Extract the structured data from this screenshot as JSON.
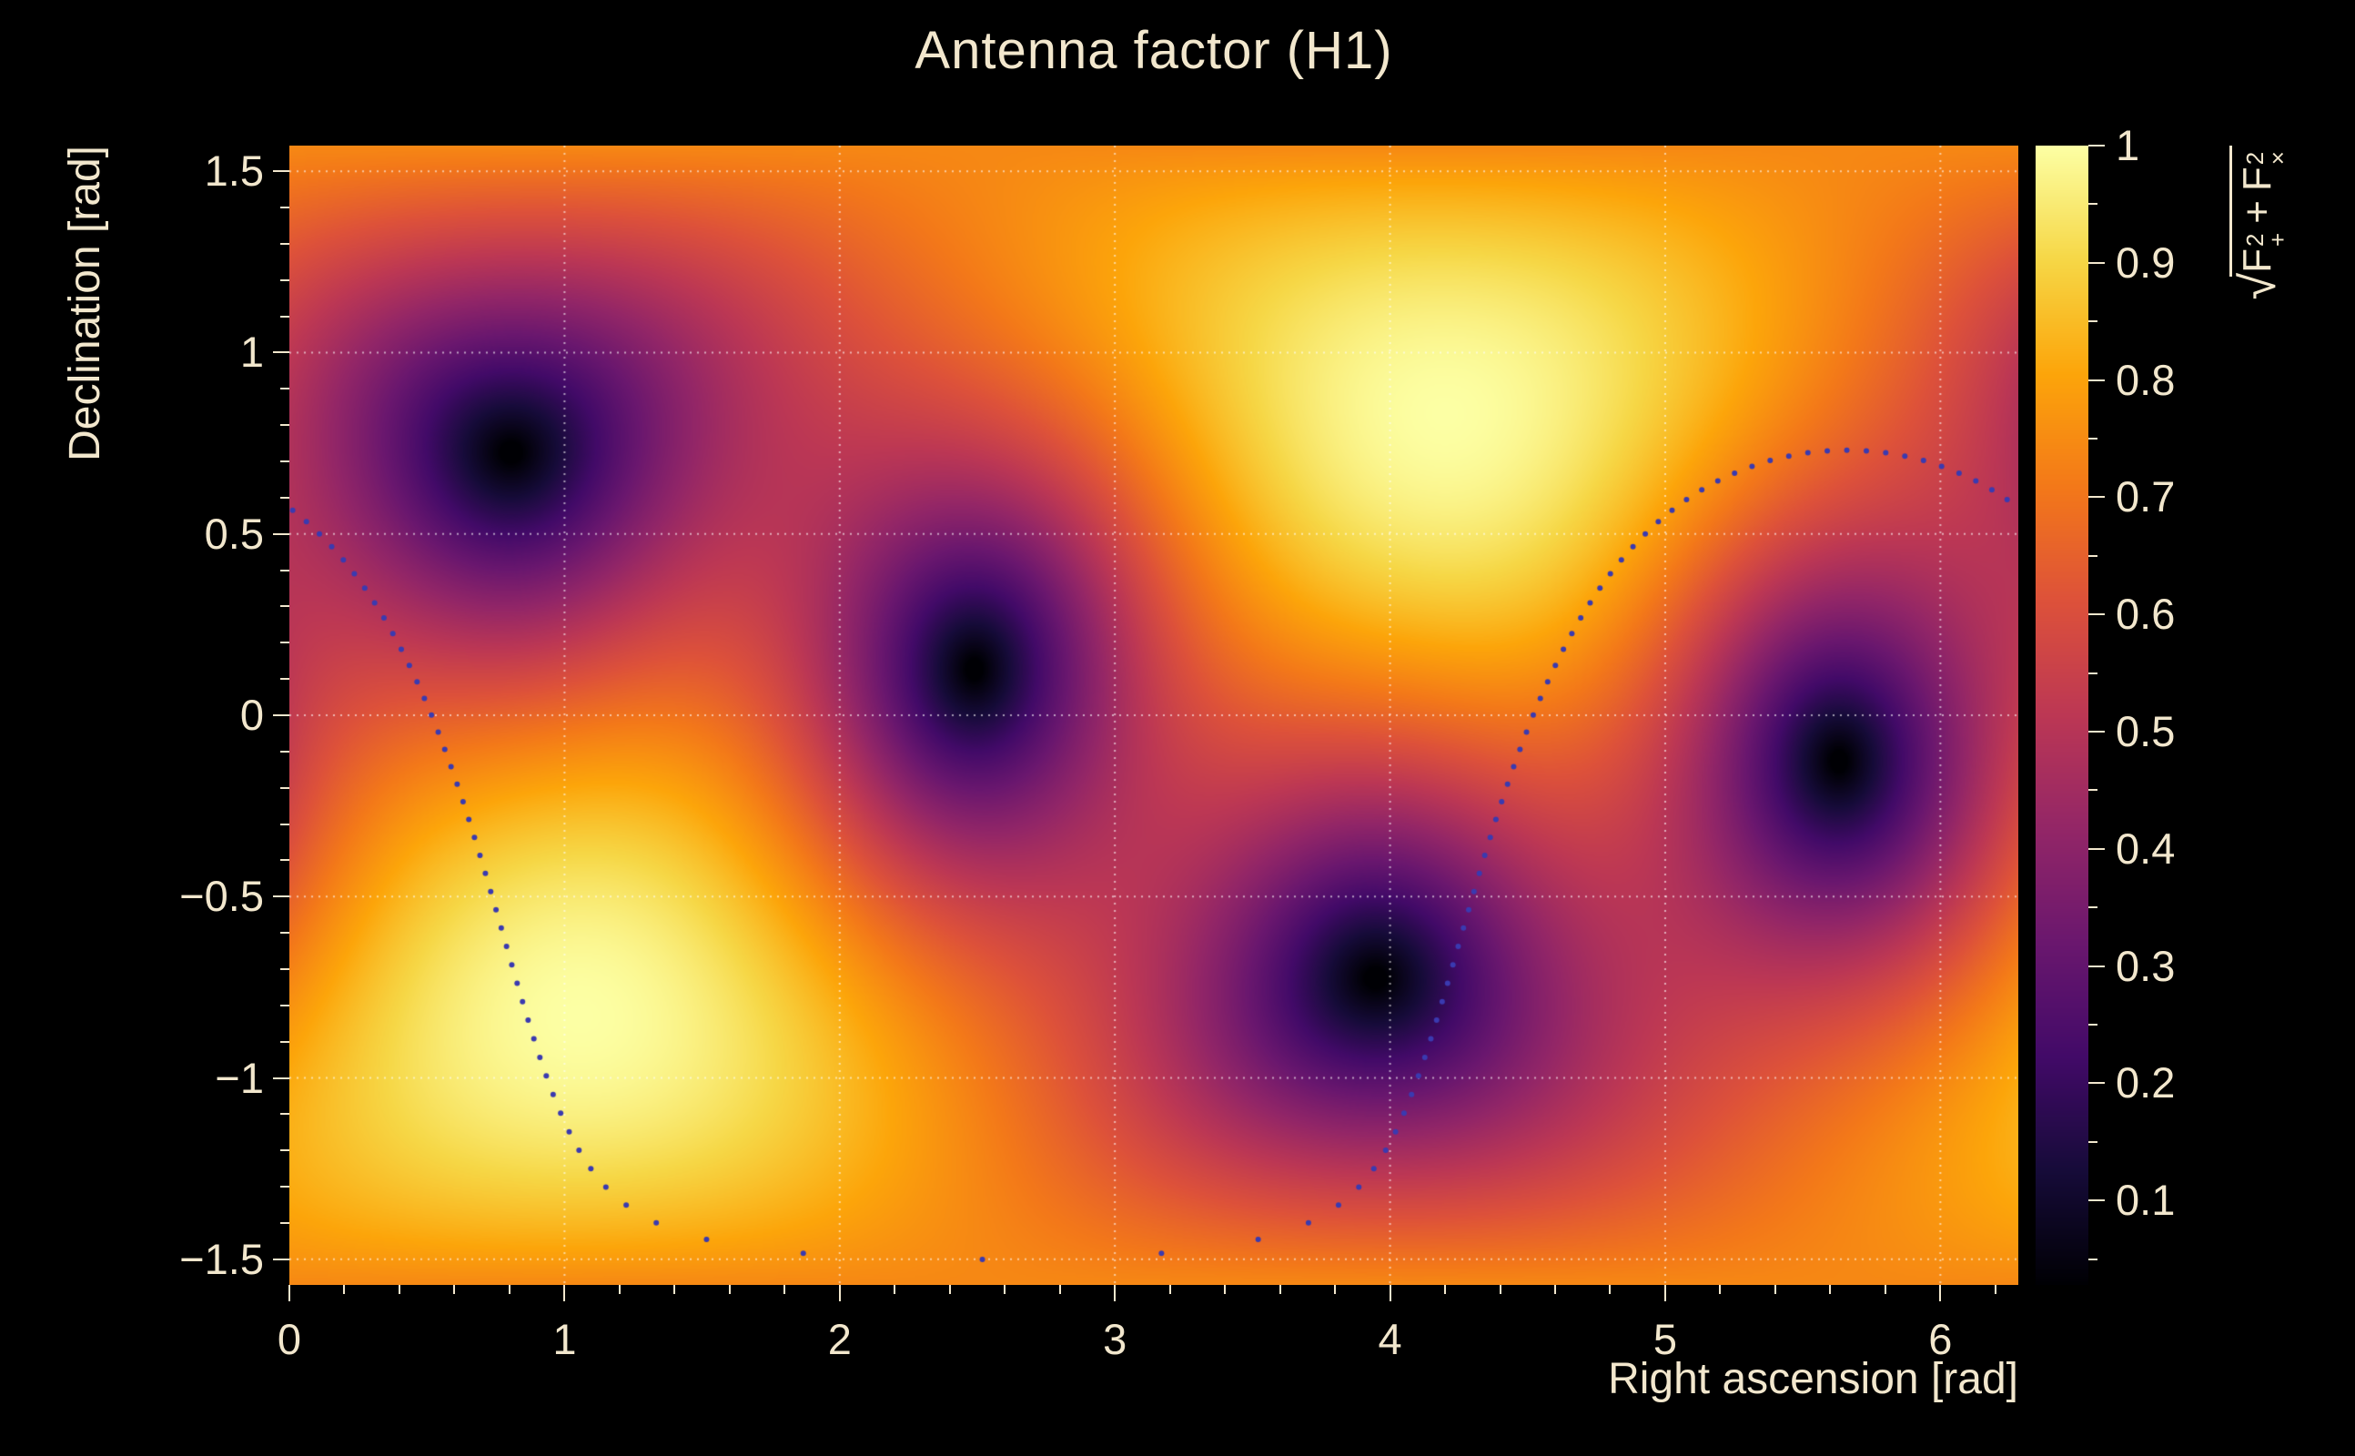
{
  "title": "Antenna factor (H1)",
  "colors": {
    "background": "#000000",
    "text": "#f2e7cd",
    "grid": "rgba(255,255,255,0.6)",
    "track_dot": "#3a3ab0",
    "tick": "#f2e7cd"
  },
  "xaxis": {
    "title": "Right ascension [rad]",
    "min": 0,
    "max": 6.2832,
    "major_ticks": [
      {
        "v": 0,
        "label": "0"
      },
      {
        "v": 1,
        "label": "1"
      },
      {
        "v": 2,
        "label": "2"
      },
      {
        "v": 3,
        "label": "3"
      },
      {
        "v": 4,
        "label": "4"
      },
      {
        "v": 5,
        "label": "5"
      },
      {
        "v": 6,
        "label": "6"
      }
    ],
    "minor_step": 0.2
  },
  "yaxis": {
    "title": "Declination [rad]",
    "min": -1.5708,
    "max": 1.5708,
    "major_ticks": [
      {
        "v": 1.5,
        "label": "1.5"
      },
      {
        "v": 1,
        "label": "1"
      },
      {
        "v": 0.5,
        "label": "0.5"
      },
      {
        "v": 0,
        "label": "0"
      },
      {
        "v": -0.5,
        "label": "−0.5"
      },
      {
        "v": -1,
        "label": "−1"
      },
      {
        "v": -1.5,
        "label": "−1.5"
      }
    ],
    "minor_step": 0.1
  },
  "zaxis": {
    "min": 0.028,
    "max": 1.0,
    "major_ticks": [
      {
        "v": 1,
        "label": "1"
      },
      {
        "v": 0.9,
        "label": "0.9"
      },
      {
        "v": 0.8,
        "label": "0.8"
      },
      {
        "v": 0.7,
        "label": "0.7"
      },
      {
        "v": 0.6,
        "label": "0.6"
      },
      {
        "v": 0.5,
        "label": "0.5"
      },
      {
        "v": 0.4,
        "label": "0.4"
      },
      {
        "v": 0.3,
        "label": "0.3"
      },
      {
        "v": 0.2,
        "label": "0.2"
      },
      {
        "v": 0.1,
        "label": "0.1"
      }
    ],
    "minor_step": 0.05,
    "title_formula": {
      "sqrt": "√",
      "f1": {
        "base": "F",
        "sup": "2",
        "sub": "+"
      },
      "op": "+",
      "f2": {
        "base": "F",
        "sup": "2",
        "sub": "×"
      }
    }
  },
  "chart_data": {
    "type": "heatmap",
    "title": "Antenna factor (H1)",
    "xlabel": "Right ascension [rad]",
    "ylabel": "Declination [rad]",
    "zlabel": "sqrt(F_plus^2 + F_cross^2)",
    "x_range": [
      0,
      6.2832
    ],
    "y_range": [
      -1.5708,
      1.5708
    ],
    "z_range": [
      0.028,
      1.0
    ],
    "grid": true,
    "model": "interferometer_antenna_pattern_magnitude",
    "detector": {
      "zenith_ra": 4.2,
      "zenith_dec": 0.83,
      "null_reference_ra": 0.8,
      "null_reference_dec": 0.75
    },
    "maxima": [
      {
        "ra": 4.2,
        "dec": 0.83,
        "value": 1.0
      },
      {
        "ra": 1.06,
        "dec": -0.83,
        "value": 1.0
      }
    ],
    "nulls": [
      {
        "ra": 0.8,
        "dec": 0.75,
        "value": 0.0
      },
      {
        "ra": 2.48,
        "dec": 0.1,
        "value": 0.0
      },
      {
        "ra": 3.94,
        "dec": -0.75,
        "value": 0.0
      },
      {
        "ra": 5.62,
        "dec": -0.1,
        "value": 0.0
      }
    ],
    "background_typical_value": 0.65,
    "palette": {
      "name": "inferno",
      "stops": [
        [
          0.0,
          "#000004"
        ],
        [
          0.1,
          "#160b39"
        ],
        [
          0.2,
          "#420a68"
        ],
        [
          0.3,
          "#6a176e"
        ],
        [
          0.4,
          "#932667"
        ],
        [
          0.5,
          "#bc3754"
        ],
        [
          0.6,
          "#dd513a"
        ],
        [
          0.7,
          "#f37819"
        ],
        [
          0.8,
          "#fca50a"
        ],
        [
          0.9,
          "#f6d746"
        ],
        [
          1.0,
          "#fcffa4"
        ]
      ]
    },
    "track": {
      "style": "dotted",
      "shape": "sky_small_circle",
      "center_ra": 5.66,
      "center_dec": -0.455,
      "radius_rad": 1.186,
      "n_points": 110,
      "max_dec": 0.73,
      "min_dec": -1.5
    }
  }
}
